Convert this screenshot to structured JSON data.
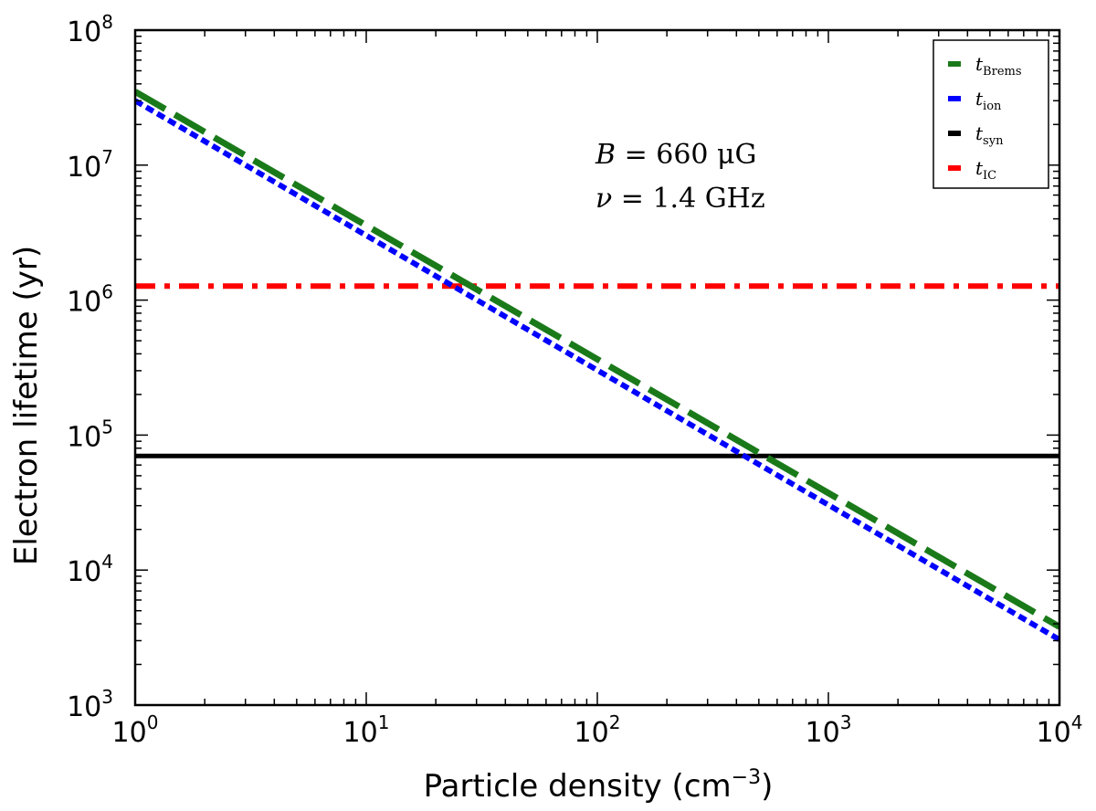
{
  "chart_data": {
    "type": "line",
    "xscale": "log",
    "yscale": "log",
    "xlim": [
      1,
      10000
    ],
    "ylim": [
      1000,
      100000000
    ],
    "xlabel": "Particle density (cm",
    "xlabel_sup": "−3",
    "xlabel_close": ")",
    "ylabel": "Electron lifetime (yr)",
    "x_ticks": [
      {
        "value": 1,
        "base": "10",
        "exp": "0"
      },
      {
        "value": 10,
        "base": "10",
        "exp": "1"
      },
      {
        "value": 100,
        "base": "10",
        "exp": "2"
      },
      {
        "value": 1000,
        "base": "10",
        "exp": "3"
      },
      {
        "value": 10000,
        "base": "10",
        "exp": "4"
      }
    ],
    "y_ticks": [
      {
        "value": 1000,
        "base": "10",
        "exp": "3"
      },
      {
        "value": 10000,
        "base": "10",
        "exp": "4"
      },
      {
        "value": 100000,
        "base": "10",
        "exp": "5"
      },
      {
        "value": 1000000,
        "base": "10",
        "exp": "6"
      },
      {
        "value": 10000000,
        "base": "10",
        "exp": "7"
      },
      {
        "value": 100000000,
        "base": "10",
        "exp": "8"
      }
    ],
    "annotation": {
      "line1_var": "B",
      "line1_rest": " = 660 μG",
      "line2_var": "ν",
      "line2_rest": " = 1.4 GHz"
    },
    "series": [
      {
        "id": "brems",
        "legend_main": "t",
        "legend_sub": "Brems",
        "color": "#1a7a1a",
        "style": "dashed",
        "x": [
          1,
          10000
        ],
        "y": [
          35000000,
          3800
        ]
      },
      {
        "id": "ion",
        "legend_main": "t",
        "legend_sub": "ion",
        "color": "#0000ff",
        "style": "dotted",
        "x": [
          1,
          10000
        ],
        "y": [
          30000000,
          3050
        ]
      },
      {
        "id": "syn",
        "legend_main": "t",
        "legend_sub": "syn",
        "color": "#000000",
        "style": "solid",
        "x": [
          1,
          10000
        ],
        "y": [
          70000,
          70000
        ]
      },
      {
        "id": "ic",
        "legend_main": "t",
        "legend_sub": "IC",
        "color": "#ff0000",
        "style": "dashdot",
        "x": [
          1,
          10000
        ],
        "y": [
          1270000,
          1270000
        ]
      }
    ],
    "legend_position": "top-right"
  }
}
